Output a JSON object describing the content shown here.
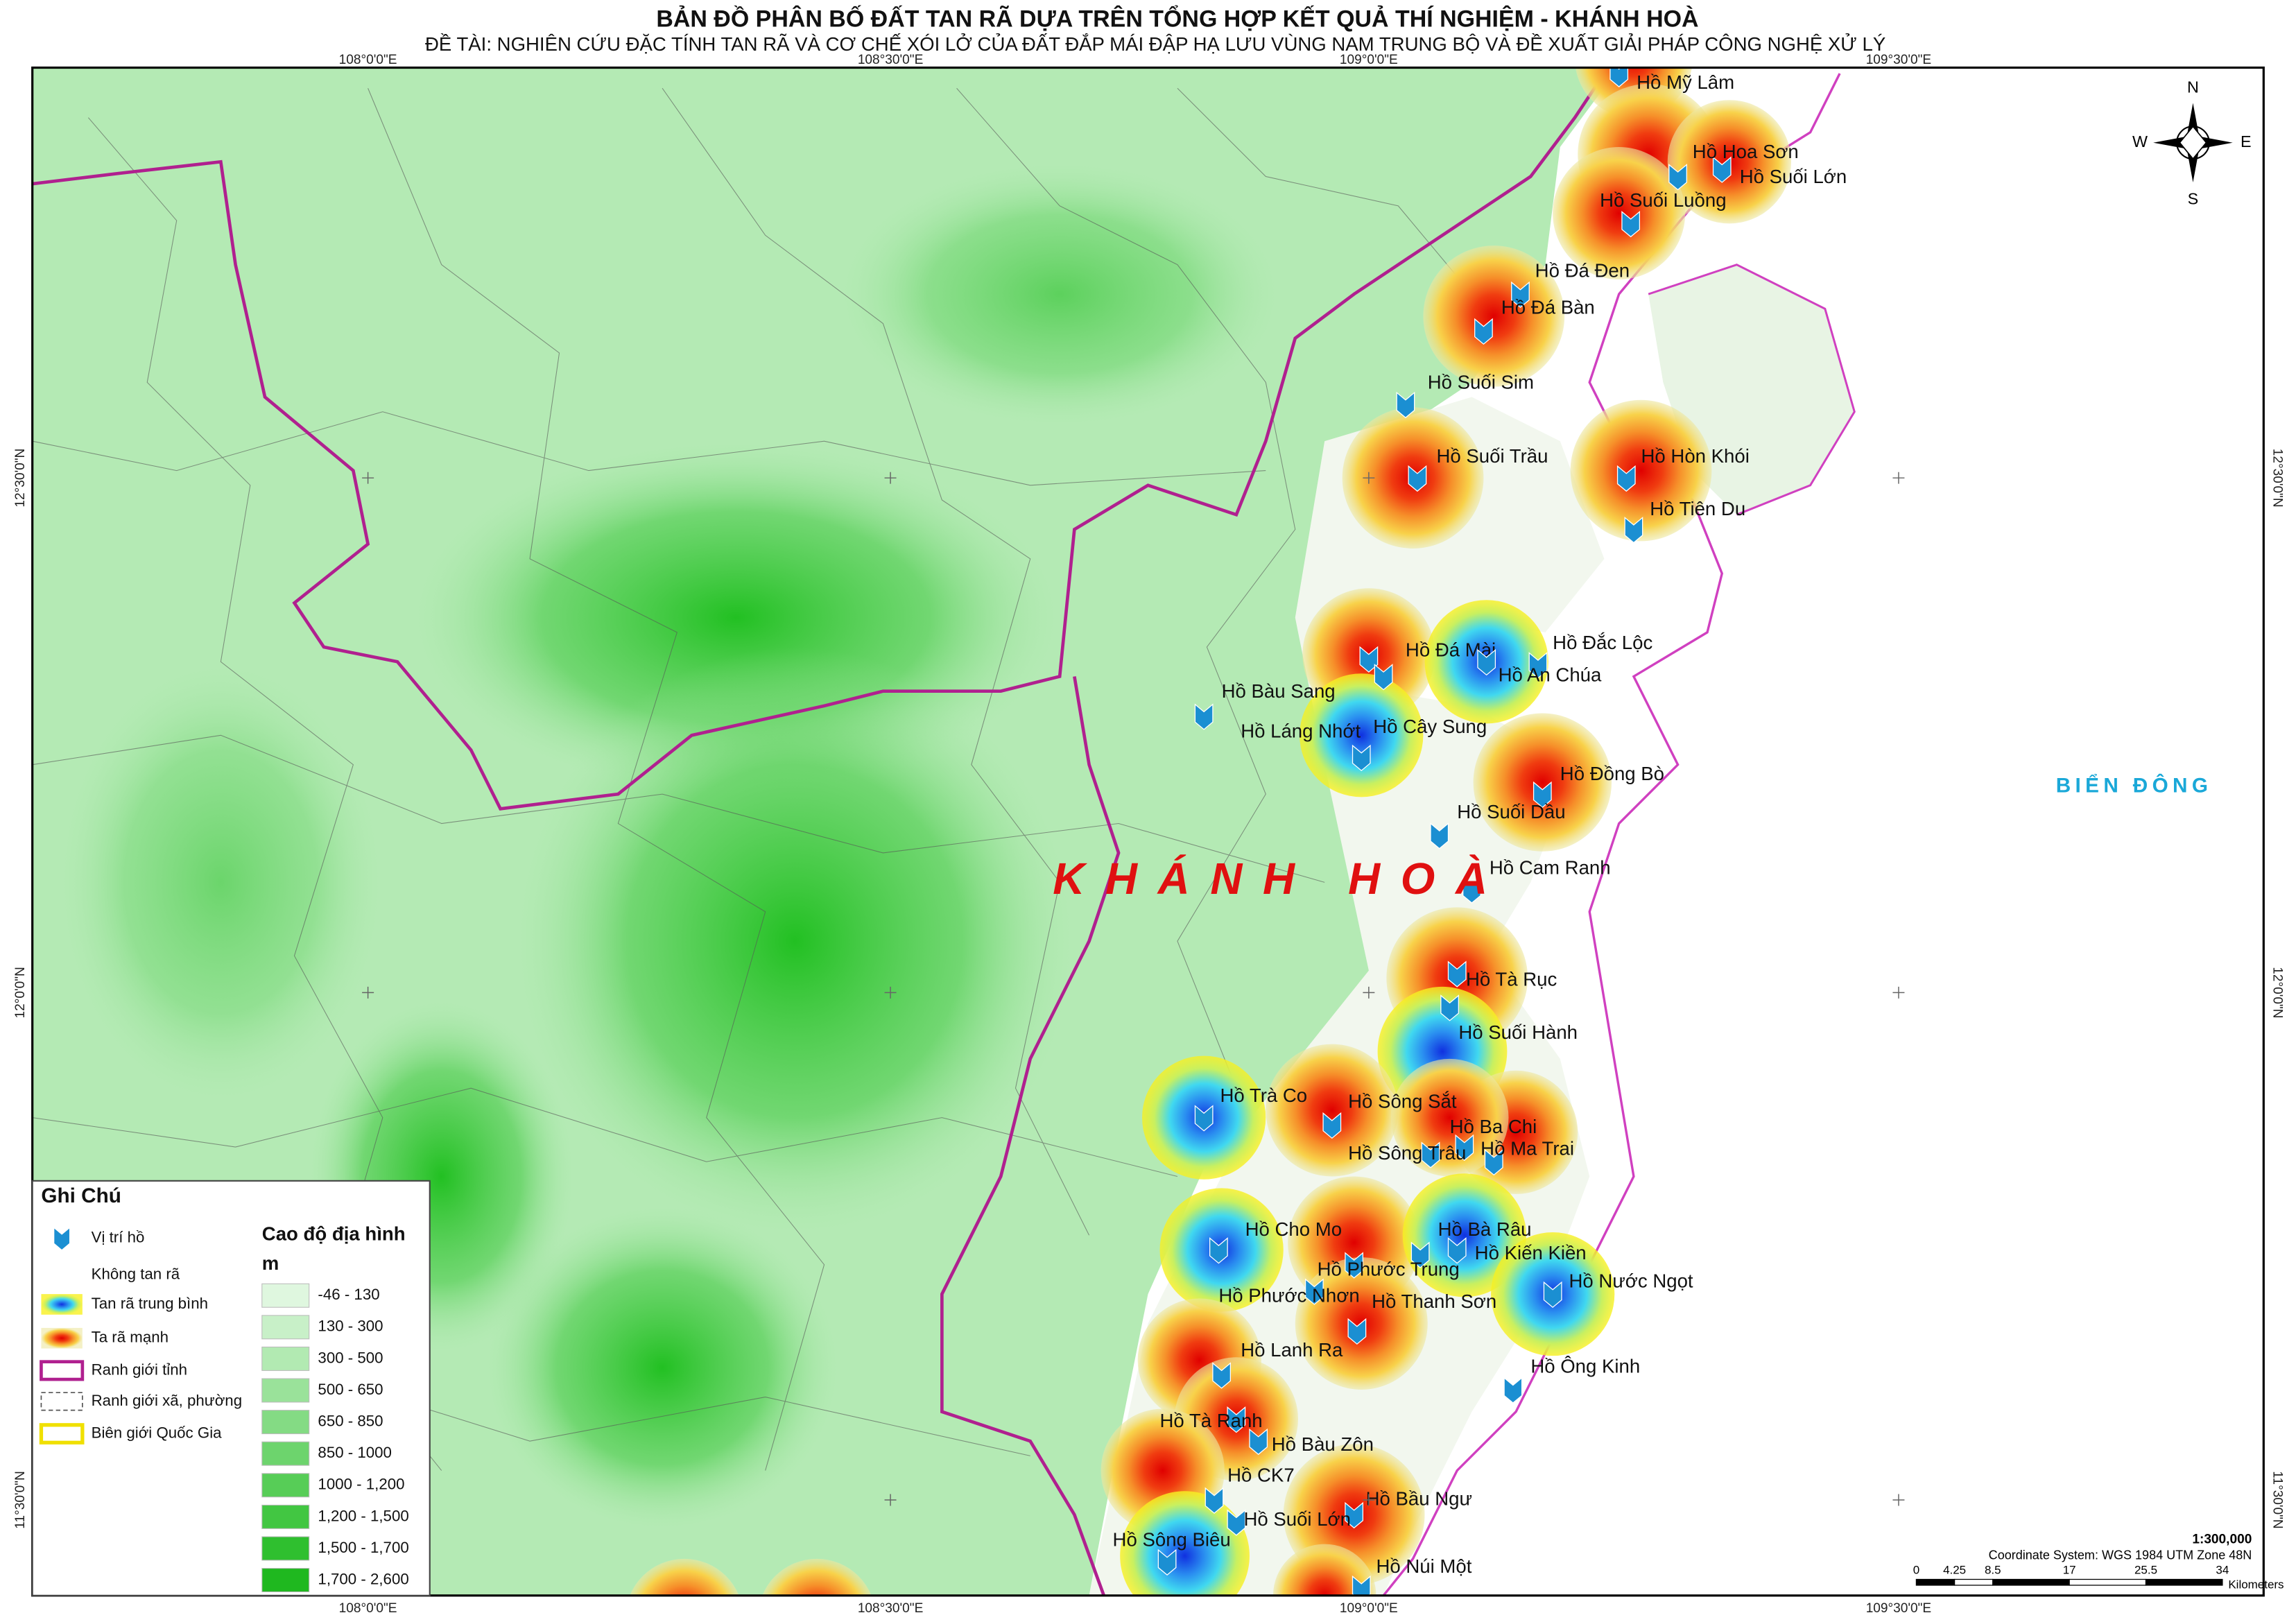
{
  "header": {
    "title": "BẢN ĐỒ PHÂN BỐ ĐẤT TAN RÃ DỰA TRÊN TỔNG HỢP KẾT QUẢ THÍ NGHIỆM - KHÁNH HOÀ",
    "subtitle": "ĐỀ TÀI: NGHIÊN CỨU ĐẶC TÍNH TAN RÃ VÀ CƠ CHẾ XÓI LỞ CỦA ĐẤT ĐẮP MÁI ĐẬP HẠ LƯU VÙNG NAM TRUNG BỘ VÀ ĐỀ XUẤT GIẢI PHÁP CÔNG NGHỆ XỬ LÝ"
  },
  "grid_labels": {
    "longitudes": [
      "108°0'0\"E",
      "108°30'0\"E",
      "109°0'0\"E",
      "109°30'0\"E"
    ],
    "latitudes": [
      "12°30'0\"N",
      "12°0'0\"N",
      "11°30'0\"N"
    ]
  },
  "places": {
    "province": "KHÁNH HOÀ",
    "sea": "BIỂN ĐÔNG"
  },
  "lakes": [
    "Hồ Mỹ Lâm",
    "Hồ Hoa Sơn",
    "Hồ Suối Lớn",
    "Hồ Suối Luồng",
    "Hồ Đá Đen",
    "Hồ Đá Bàn",
    "Hồ Suối Sim",
    "Hồ Suối Trầu",
    "Hồ Hòn Khói",
    "Hồ Tiên Du",
    "Hồ Đá Mài",
    "Hồ Đắc Lộc",
    "Hồ An Chúa",
    "Hồ Bàu Sang",
    "Hồ Láng Nhớt",
    "Hồ Cây Sung",
    "Hồ Đồng Bò",
    "Hồ Suối Dầu",
    "Hồ Cam Ranh",
    "Hồ Tà Rục",
    "Hồ Suối Hành",
    "Hồ Trà Co",
    "Hồ Sông Sắt",
    "Hồ Ba Chi",
    "Hồ Ma Trai",
    "Hồ Sông Trâu",
    "Hồ Cho Mo",
    "Hồ Bà Râu",
    "Hồ Kiến Kiền",
    "Hồ Phước Trung",
    "Hồ Nước Ngọt",
    "Hồ Phước Nhơn",
    "Hồ Thanh Sơn",
    "Hồ Lanh Ra",
    "Hồ Ông Kinh",
    "Hồ Tà Ranh",
    "Hồ Bàu Zôn",
    "Hồ CK7",
    "Hồ Bầu Ngư",
    "Hồ Suối Lớn",
    "Hồ Sông Biêu",
    "Hồ Núi Một"
  ],
  "legend": {
    "title": "Ghi Chú",
    "items": [
      "Vị trí hồ",
      "Không tan rã",
      "Tan rã trung bình",
      "Ta rã mạnh",
      "Ranh giới tỉnh",
      "Ranh giới xã, phường",
      "Biên giới Quốc Gia"
    ],
    "elevation_title": "Cao độ địa hình",
    "elevation_unit": "m",
    "elevation_classes": [
      {
        "label": "-46 - 130",
        "color": "#dff7df"
      },
      {
        "label": "130 - 300",
        "color": "#c8f0c8"
      },
      {
        "label": "300 - 500",
        "color": "#b2eab2"
      },
      {
        "label": "500 - 650",
        "color": "#9ae29a"
      },
      {
        "label": "650 - 850",
        "color": "#84db84"
      },
      {
        "label": "850 - 1000",
        "color": "#6dd46d"
      },
      {
        "label": "1000 - 1,200",
        "color": "#57cd57"
      },
      {
        "label": "1,200 - 1,500",
        "color": "#42c642"
      },
      {
        "label": "1,500 - 1,700",
        "color": "#2fbf2f"
      },
      {
        "label": "1,700 - 2,600",
        "color": "#1fb81f"
      }
    ]
  },
  "scale": {
    "ratio": "1:300,000",
    "coordinate_system": "Coordinate System: WGS 1984 UTM Zone 48N",
    "ticks": [
      0,
      4.25,
      8.5,
      17,
      25.5,
      34
    ],
    "unit": "Kilometers"
  },
  "compass": {
    "n": "N",
    "s": "S",
    "e": "E",
    "w": "W"
  }
}
